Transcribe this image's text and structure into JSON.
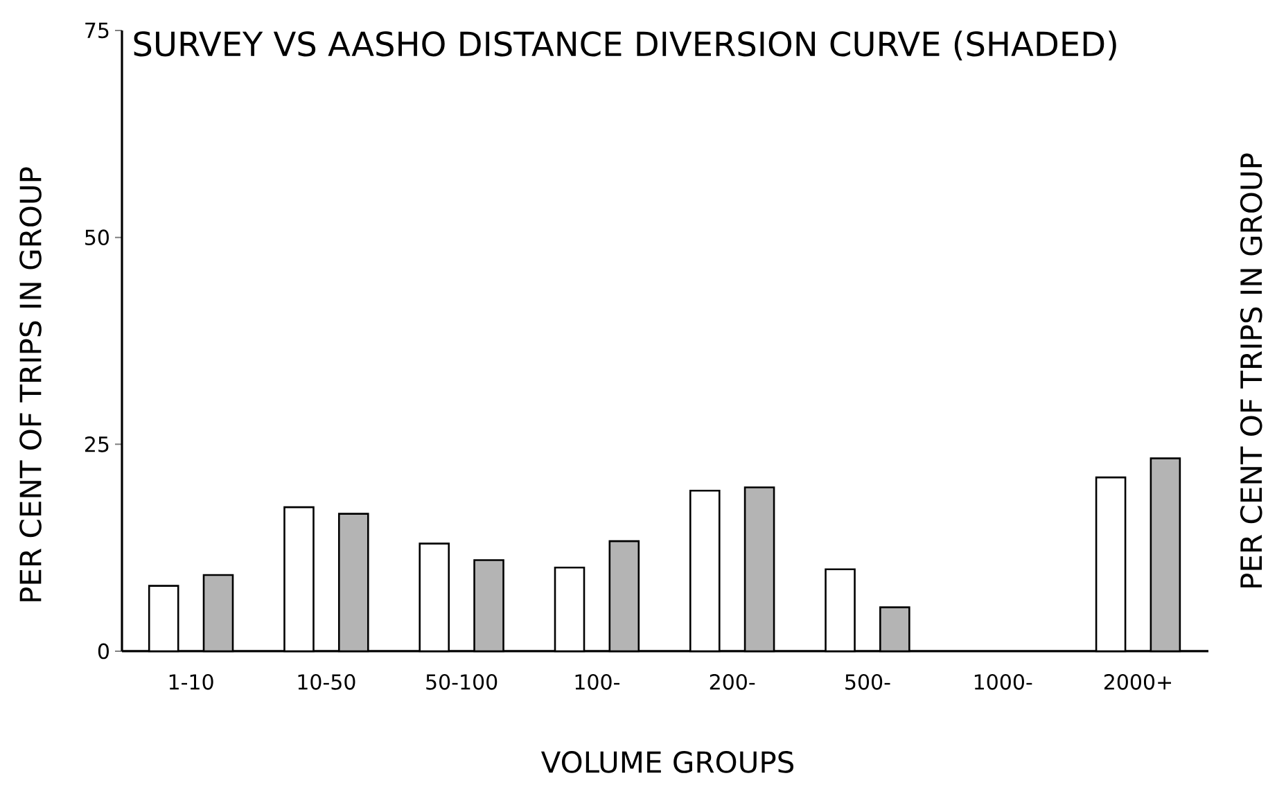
{
  "chart_data": {
    "type": "bar",
    "title": "SURVEY VS AASHO DISTANCE DIVERSION CURVE (SHADED)",
    "xlabel": "VOLUME GROUPS",
    "ylabel": "PER CENT OF TRIPS IN GROUP",
    "y2label": "PER CENT OF TRIPS IN GROUP",
    "categories": [
      "1-10",
      "10-50",
      "50-100",
      "100-",
      "200-",
      "500-",
      "1000-",
      "2000+"
    ],
    "series": [
      {
        "color": "#ffffff",
        "values": [
          7.9,
          17.4,
          13.0,
          10.1,
          19.4,
          9.9,
          null,
          21.0
        ]
      },
      {
        "color": "#b4b4b4",
        "values": [
          9.2,
          16.6,
          11.0,
          13.3,
          19.8,
          5.3,
          null,
          23.3
        ]
      }
    ],
    "ylim": [
      0,
      75
    ],
    "yticks": [
      0,
      25,
      50,
      75
    ]
  }
}
